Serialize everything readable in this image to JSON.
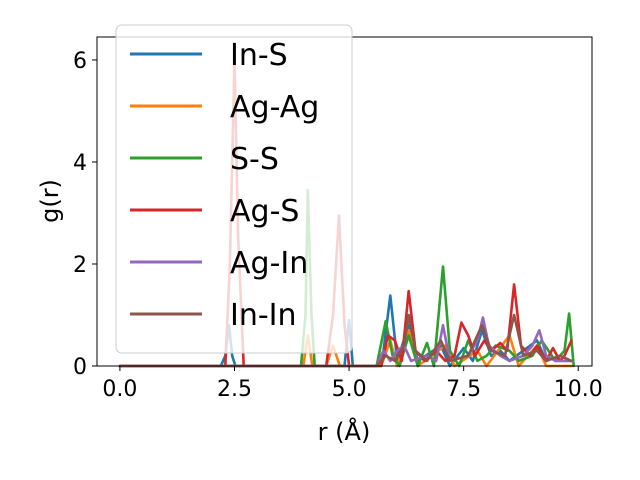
{
  "chart_data": {
    "type": "line",
    "title": "",
    "xlabel": "r (Å)",
    "ylabel": "g(r)",
    "xlim": [
      -0.5,
      10.3
    ],
    "ylim": [
      0,
      6.45
    ],
    "xticks": [
      0.0,
      2.5,
      5.0,
      7.5,
      10.0
    ],
    "xtick_labels": [
      "0.0",
      "2.5",
      "5.0",
      "7.5",
      "10.0"
    ],
    "yticks": [
      0,
      2,
      4,
      6
    ],
    "ytick_labels": [
      "0",
      "2",
      "4",
      "6"
    ],
    "grid": false,
    "legend": "top-left",
    "series": [
      {
        "name": "In-S",
        "color": "#1f77b4",
        "points": [
          [
            0,
            0
          ],
          [
            2.2,
            0
          ],
          [
            2.3,
            0.2
          ],
          [
            2.38,
            0.8
          ],
          [
            2.45,
            0.2
          ],
          [
            2.52,
            0
          ],
          [
            4.9,
            0
          ],
          [
            5.0,
            0.9
          ],
          [
            5.08,
            0
          ],
          [
            5.6,
            0
          ],
          [
            5.75,
            0.3
          ],
          [
            5.9,
            1.38
          ],
          [
            6.05,
            0.1
          ],
          [
            6.3,
            0.8
          ],
          [
            6.5,
            0.1
          ],
          [
            7.0,
            0.4
          ],
          [
            7.2,
            0
          ],
          [
            7.5,
            0.35
          ],
          [
            7.7,
            0.1
          ],
          [
            7.9,
            0.7
          ],
          [
            8.1,
            0.2
          ],
          [
            8.3,
            0.3
          ],
          [
            8.5,
            0.1
          ],
          [
            8.8,
            0.3
          ],
          [
            9.1,
            0.5
          ],
          [
            9.3,
            0.1
          ],
          [
            9.6,
            0.2
          ],
          [
            9.85,
            0.1
          ]
        ]
      },
      {
        "name": "Ag-Ag",
        "color": "#ff7f0e",
        "points": [
          [
            0,
            0
          ],
          [
            4.0,
            0
          ],
          [
            4.1,
            0.6
          ],
          [
            4.2,
            0
          ],
          [
            4.5,
            0
          ],
          [
            4.65,
            0.4
          ],
          [
            4.8,
            0
          ],
          [
            5.7,
            0
          ],
          [
            5.9,
            0.5
          ],
          [
            6.05,
            0
          ],
          [
            6.3,
            0.7
          ],
          [
            6.5,
            0
          ],
          [
            7.1,
            0.4
          ],
          [
            7.3,
            0
          ],
          [
            7.8,
            0.3
          ],
          [
            8.0,
            0
          ],
          [
            8.5,
            0.6
          ],
          [
            8.7,
            0
          ],
          [
            9.1,
            0.4
          ],
          [
            9.3,
            0
          ],
          [
            9.85,
            0
          ]
        ]
      },
      {
        "name": "S-S",
        "color": "#2ca02c",
        "points": [
          [
            0,
            0
          ],
          [
            3.95,
            0
          ],
          [
            4.05,
            1.0
          ],
          [
            4.1,
            3.45
          ],
          [
            4.18,
            1.0
          ],
          [
            4.25,
            0
          ],
          [
            5.6,
            0
          ],
          [
            5.8,
            0.88
          ],
          [
            5.95,
            0.2
          ],
          [
            6.1,
            0
          ],
          [
            6.3,
            0.6
          ],
          [
            6.5,
            0
          ],
          [
            6.7,
            0.45
          ],
          [
            6.85,
            0
          ],
          [
            7.05,
            1.95
          ],
          [
            7.2,
            0.3
          ],
          [
            7.4,
            0
          ],
          [
            7.6,
            0.5
          ],
          [
            7.8,
            0.1
          ],
          [
            8.0,
            0.2
          ],
          [
            8.2,
            0.4
          ],
          [
            8.5,
            0.3
          ],
          [
            8.7,
            0.1
          ],
          [
            9.0,
            0.2
          ],
          [
            9.2,
            0.5
          ],
          [
            9.5,
            0.1
          ],
          [
            9.7,
            0.3
          ],
          [
            9.8,
            1.03
          ],
          [
            9.9,
            0
          ]
        ]
      },
      {
        "name": "Ag-S",
        "color": "#d62728",
        "points": [
          [
            0,
            0
          ],
          [
            2.3,
            0
          ],
          [
            2.4,
            2.0
          ],
          [
            2.5,
            6.0
          ],
          [
            2.58,
            2.5
          ],
          [
            2.7,
            0
          ],
          [
            4.5,
            0
          ],
          [
            4.65,
            1.0
          ],
          [
            4.78,
            2.95
          ],
          [
            4.9,
            0.8
          ],
          [
            5.0,
            0
          ],
          [
            5.7,
            0
          ],
          [
            5.85,
            0.6
          ],
          [
            6.0,
            0.5
          ],
          [
            6.15,
            0.1
          ],
          [
            6.3,
            1.47
          ],
          [
            6.45,
            0.3
          ],
          [
            6.65,
            0.1
          ],
          [
            6.9,
            0.3
          ],
          [
            7.1,
            0.1
          ],
          [
            7.3,
            0.2
          ],
          [
            7.45,
            0.85
          ],
          [
            7.6,
            0.6
          ],
          [
            7.75,
            0.2
          ],
          [
            7.95,
            0.5
          ],
          [
            8.1,
            0.3
          ],
          [
            8.3,
            0.45
          ],
          [
            8.45,
            0.3
          ],
          [
            8.6,
            1.6
          ],
          [
            8.75,
            0.4
          ],
          [
            8.95,
            0.2
          ],
          [
            9.1,
            0.4
          ],
          [
            9.3,
            0.1
          ],
          [
            9.45,
            0.35
          ],
          [
            9.6,
            0.1
          ],
          [
            9.7,
            0.2
          ],
          [
            9.85,
            0.5
          ]
        ]
      },
      {
        "name": "Ag-In",
        "color": "#9467bd",
        "points": [
          [
            0,
            0
          ],
          [
            5.6,
            0
          ],
          [
            5.75,
            0.3
          ],
          [
            5.9,
            0.1
          ],
          [
            6.05,
            0.3
          ],
          [
            6.2,
            0.4
          ],
          [
            6.35,
            0.1
          ],
          [
            6.7,
            0.2
          ],
          [
            6.9,
            0.1
          ],
          [
            7.05,
            0.8
          ],
          [
            7.2,
            0.1
          ],
          [
            7.6,
            0.2
          ],
          [
            7.8,
            0.5
          ],
          [
            7.92,
            0.95
          ],
          [
            8.05,
            0.4
          ],
          [
            8.3,
            0.2
          ],
          [
            8.5,
            0.1
          ],
          [
            8.8,
            0.2
          ],
          [
            9.0,
            0.4
          ],
          [
            9.15,
            0.7
          ],
          [
            9.3,
            0.2
          ],
          [
            9.5,
            0.1
          ],
          [
            9.85,
            0.1
          ]
        ]
      },
      {
        "name": "In-In",
        "color": "#8c564b",
        "points": [
          [
            0,
            0
          ],
          [
            5.6,
            0
          ],
          [
            5.8,
            0.2
          ],
          [
            6.0,
            0.1
          ],
          [
            6.2,
            0.4
          ],
          [
            6.3,
            1.0
          ],
          [
            6.45,
            0.3
          ],
          [
            6.7,
            0.1
          ],
          [
            7.0,
            0.5
          ],
          [
            7.2,
            0.1
          ],
          [
            7.6,
            0.2
          ],
          [
            7.9,
            0.8
          ],
          [
            8.1,
            0.3
          ],
          [
            8.4,
            0.2
          ],
          [
            8.6,
            1.0
          ],
          [
            8.8,
            0.2
          ],
          [
            9.1,
            0.3
          ],
          [
            9.3,
            0.1
          ],
          [
            9.6,
            0.2
          ],
          [
            9.85,
            0.1
          ]
        ]
      }
    ]
  }
}
